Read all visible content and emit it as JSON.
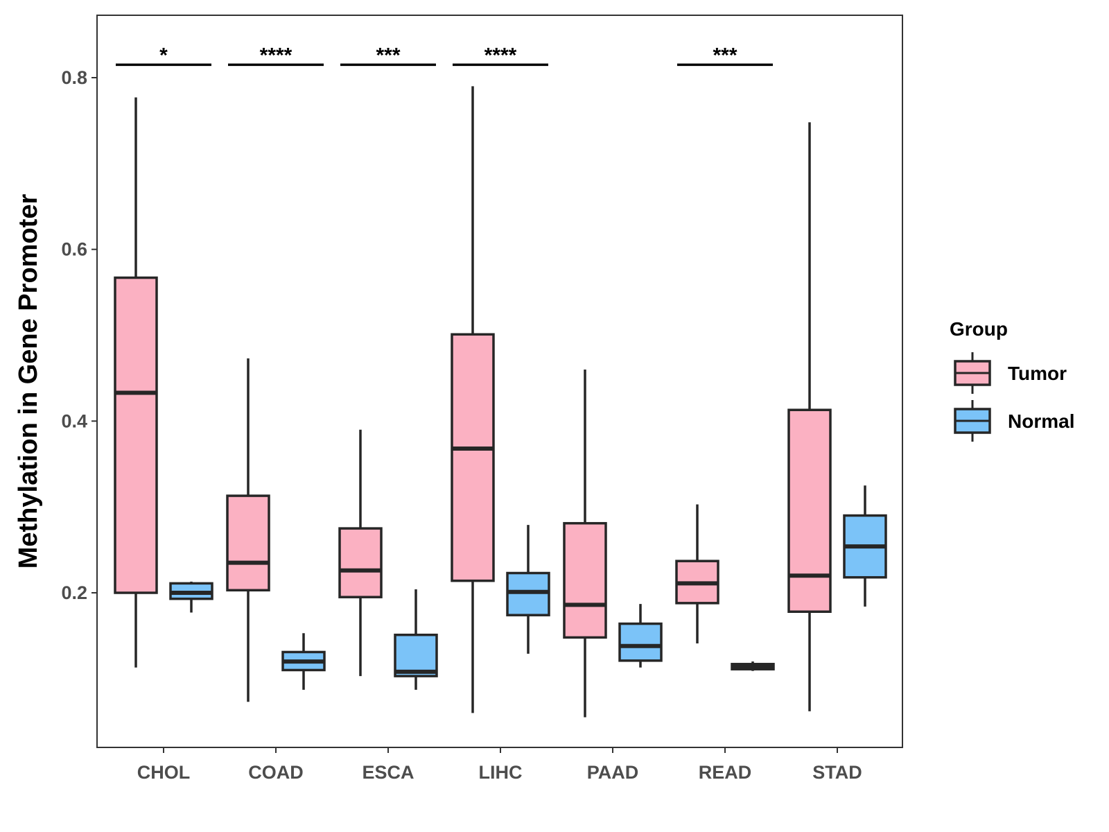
{
  "chart_data": {
    "type": "boxplot",
    "title": "",
    "xlabel": "",
    "ylabel": "Methylation in Gene Promoter",
    "ylim": [
      0.035,
      0.87
    ],
    "yticks": [
      "0.2",
      "0.4",
      "0.6",
      "0.8"
    ],
    "categories": [
      "CHOL",
      "COAD",
      "ESCA",
      "LIHC",
      "PAAD",
      "READ",
      "STAD"
    ],
    "legend": {
      "title": "Group",
      "position": "right",
      "entries": [
        "Tumor",
        "Normal"
      ]
    },
    "colors": {
      "Tumor": "#fbb1c2",
      "Normal": "#7bc3f8",
      "stroke": "#262626"
    },
    "series": [
      {
        "name": "Tumor",
        "boxes": [
          {
            "min": 0.113,
            "q1": 0.2,
            "median": 0.433,
            "q3": 0.567,
            "max": 0.777
          },
          {
            "min": 0.073,
            "q1": 0.203,
            "median": 0.235,
            "q3": 0.313,
            "max": 0.473
          },
          {
            "min": 0.103,
            "q1": 0.195,
            "median": 0.226,
            "q3": 0.275,
            "max": 0.39
          },
          {
            "min": 0.06,
            "q1": 0.214,
            "median": 0.368,
            "q3": 0.501,
            "max": 0.79
          },
          {
            "min": 0.055,
            "q1": 0.148,
            "median": 0.186,
            "q3": 0.281,
            "max": 0.46
          },
          {
            "min": 0.141,
            "q1": 0.188,
            "median": 0.211,
            "q3": 0.237,
            "max": 0.303
          },
          {
            "min": 0.062,
            "q1": 0.178,
            "median": 0.22,
            "q3": 0.413,
            "max": 0.748
          }
        ]
      },
      {
        "name": "Normal",
        "boxes": [
          {
            "min": 0.177,
            "q1": 0.193,
            "median": 0.2,
            "q3": 0.211,
            "max": 0.213
          },
          {
            "min": 0.087,
            "q1": 0.11,
            "median": 0.12,
            "q3": 0.131,
            "max": 0.153
          },
          {
            "min": 0.087,
            "q1": 0.103,
            "median": 0.108,
            "q3": 0.151,
            "max": 0.204
          },
          {
            "min": 0.129,
            "q1": 0.174,
            "median": 0.201,
            "q3": 0.223,
            "max": 0.279
          },
          {
            "min": 0.113,
            "q1": 0.121,
            "median": 0.138,
            "q3": 0.164,
            "max": 0.187
          },
          {
            "min": 0.109,
            "q1": 0.111,
            "median": 0.114,
            "q3": 0.117,
            "max": 0.12
          },
          {
            "min": 0.184,
            "q1": 0.218,
            "median": 0.254,
            "q3": 0.29,
            "max": 0.325
          }
        ]
      }
    ],
    "significance": [
      {
        "category": "CHOL",
        "label": "*"
      },
      {
        "category": "COAD",
        "label": "****"
      },
      {
        "category": "ESCA",
        "label": "***"
      },
      {
        "category": "LIHC",
        "label": "****"
      },
      {
        "category": "READ",
        "label": "***"
      }
    ],
    "significance_bar_y": 0.815
  }
}
